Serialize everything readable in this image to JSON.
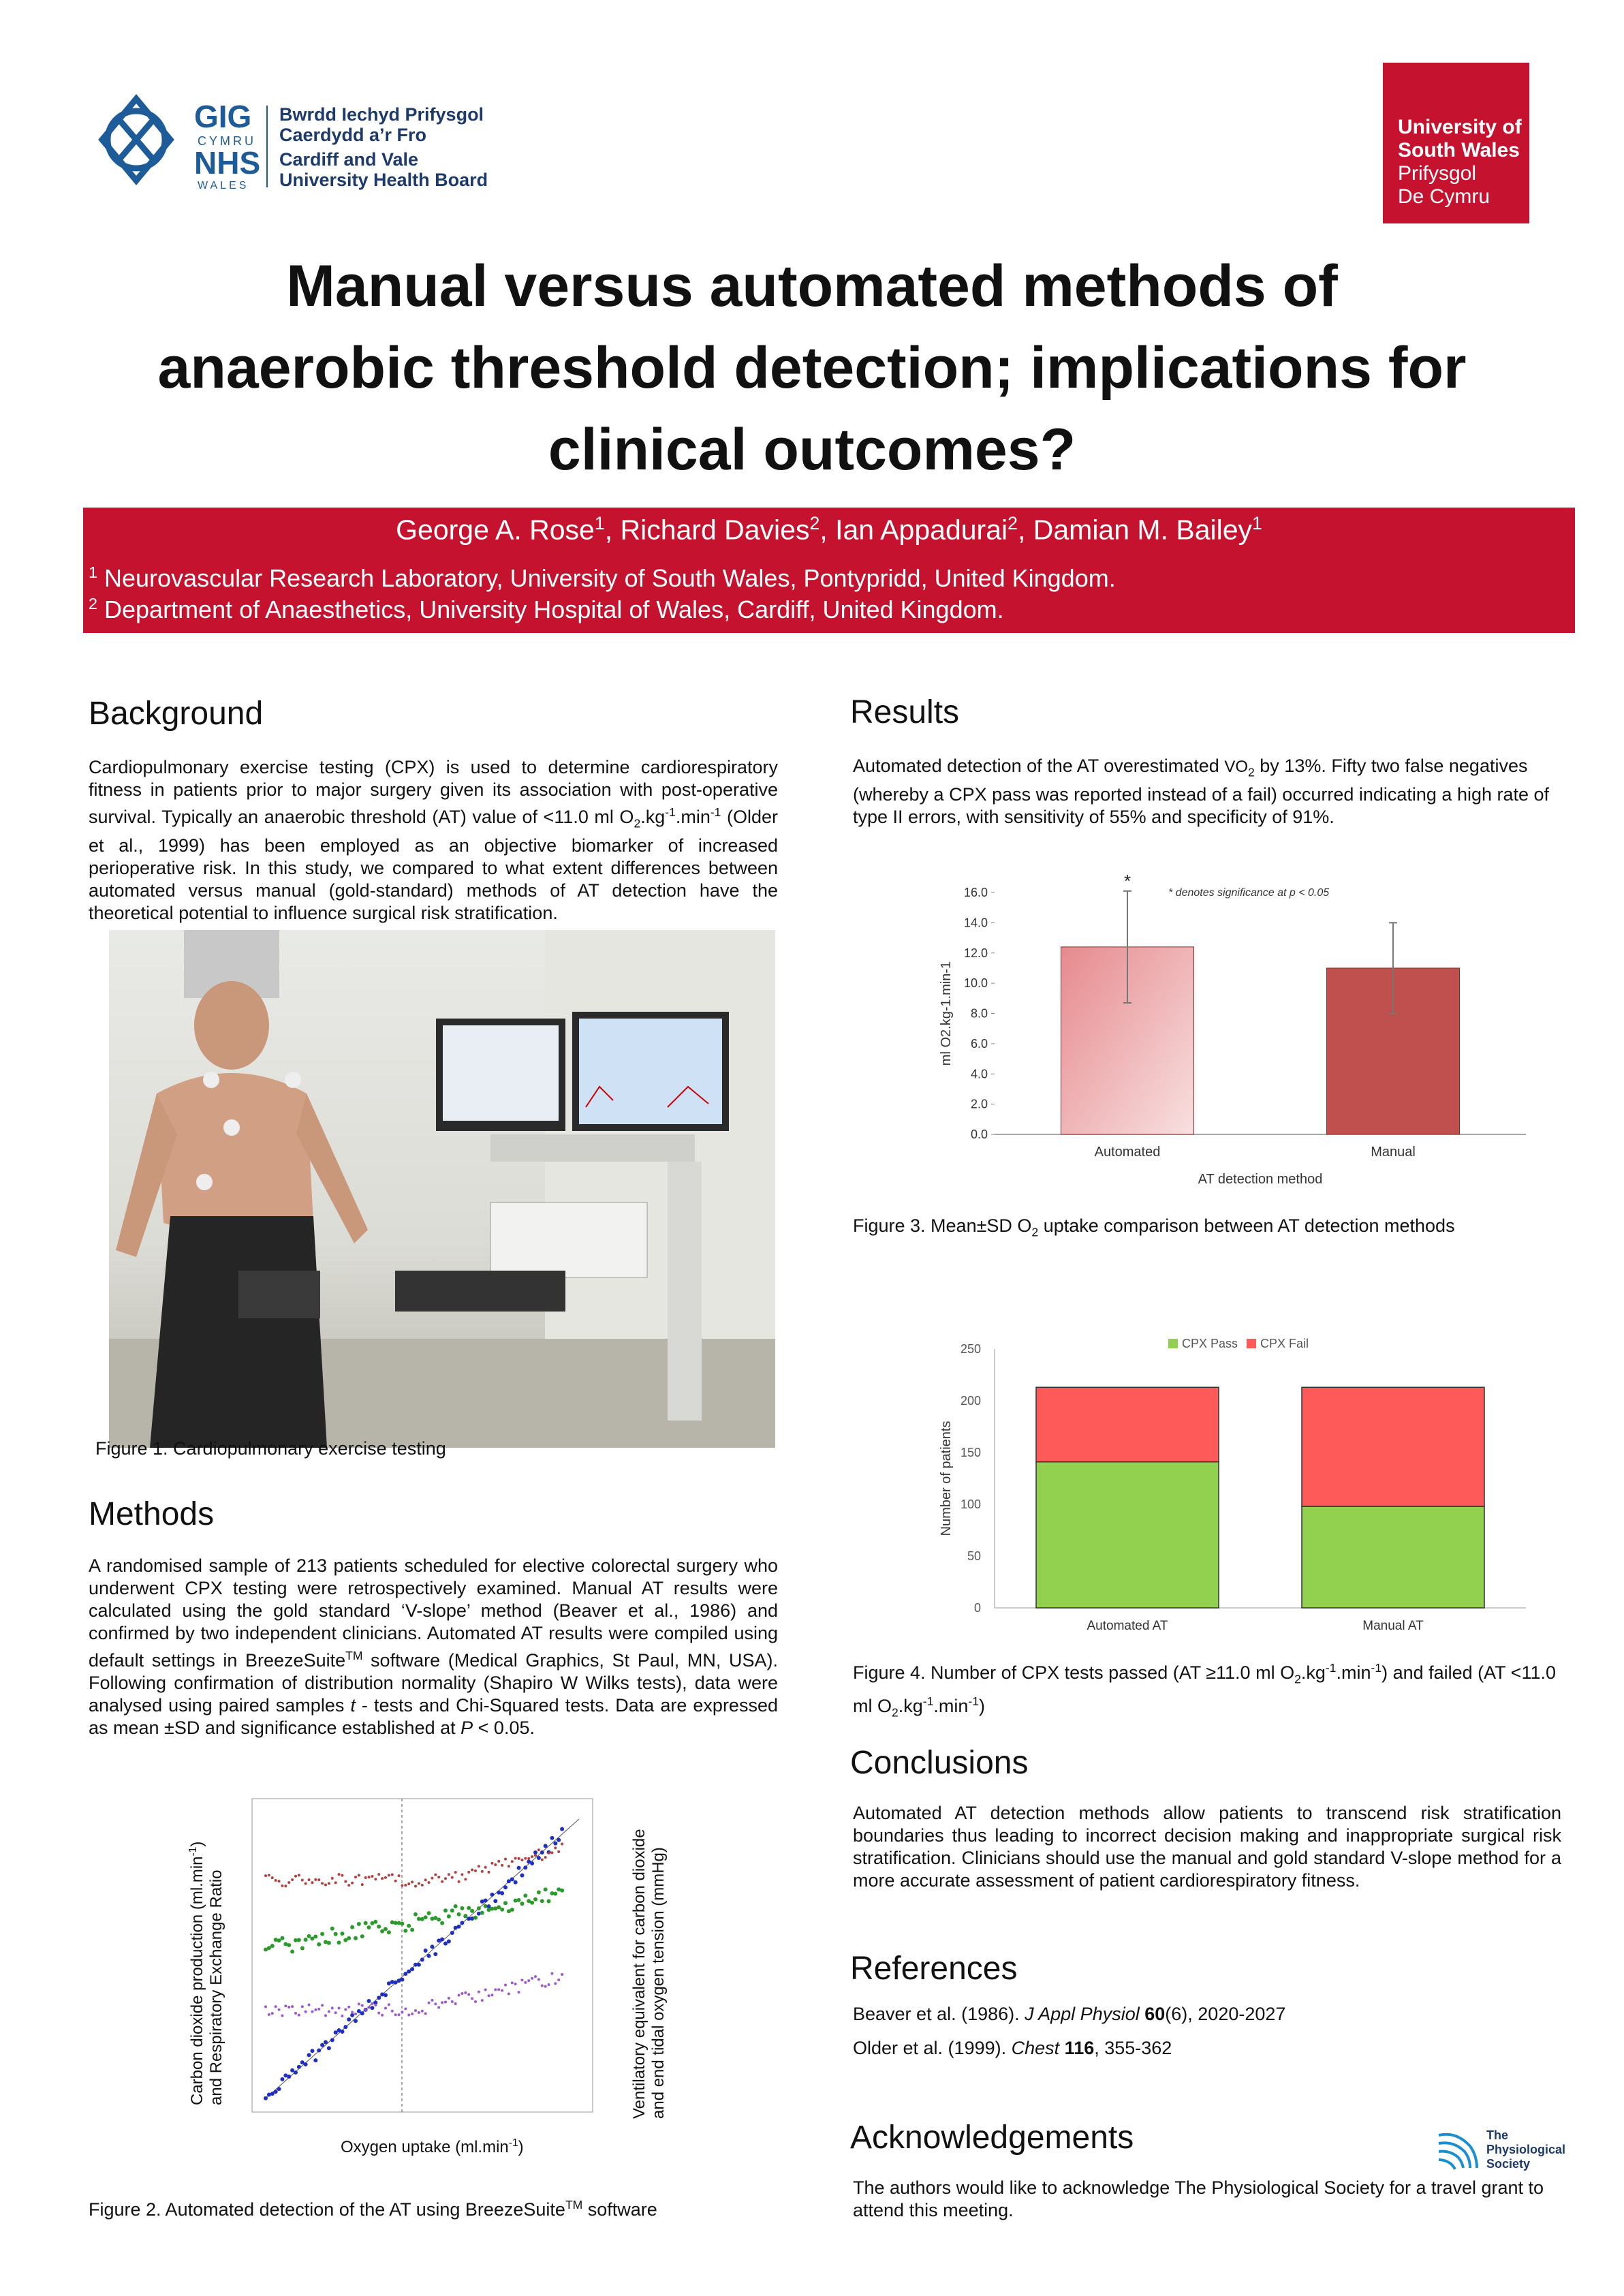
{
  "logos": {
    "nhs": {
      "gig": "GIG",
      "cymru": "CYMRU",
      "nhs": "NHS",
      "wales": "WALES",
      "lines": [
        "Bwrdd Iechyd Prifysgol",
        "Caerdydd a’r Fro",
        "Cardiff and Vale",
        "University Health Board"
      ]
    },
    "usw": [
      "University of",
      "South Wales",
      "Prifysgol",
      "De Cymru"
    ],
    "physoc": [
      "The",
      "Physiological",
      "Society"
    ]
  },
  "title": [
    "Manual versus automated methods of",
    "anaerobic threshold detection; implications for",
    "clinical outcomes?"
  ],
  "authors": {
    "a1": "George A. Rose",
    "s1": "1",
    "a2": ", Richard Davies",
    "s2": "2",
    "a3": ", Ian Appadurai",
    "s3": "2",
    "a4": ", Damian M. Bailey",
    "s4": "1"
  },
  "affiliations": [
    {
      "sup": "1",
      "text": " Neurovascular Research Laboratory, University of South Wales, Pontypridd, United Kingdom."
    },
    {
      "sup": "2",
      "text": " Department of Anaesthetics, University Hospital of Wales, Cardiff, United Kingdom."
    }
  ],
  "background": {
    "heading": "Background",
    "t1": "Cardiopulmonary exercise testing (CPX) is used to determine cardiorespiratory fitness in patients prior to major surgery given its association with post-operative survival. Typically an anaerobic threshold (AT) value of <11.0 ml O",
    "sub": "2",
    "t2": ".kg",
    "sup1": "-1",
    "t3": ".min",
    "sup2": "-1",
    "t4": " (Older et al., 1999) has been employed as an objective biomarker of increased perioperative risk. In this study, we compared to what extent differences between automated versus manual (gold-standard) methods of AT detection have the theoretical potential to influence surgical risk stratification."
  },
  "figure1_caption": "Figure 1.  Cardiopulmonary exercise testing",
  "methods": {
    "heading": "Methods",
    "t1": "A randomised sample of 213 patients scheduled for elective colorectal surgery who underwent CPX testing were retrospectively examined. Manual AT results were calculated using the gold standard ‘V-slope’ method (Beaver et al., 1986) and confirmed by two independent clinicians. Automated AT results were compiled using default settings in BreezeSuite",
    "tm": "TM",
    "t2": " software (Medical Graphics, St Paul, MN, USA). Following confirmation of distribution normality (Shapiro W Wilks tests), data were analysed using paired samples ",
    "t_ital": "t",
    "t3": " - tests and Chi-Squared tests. Data are expressed as mean ±SD and significance established at ",
    "p_ital": "P",
    "t4": " < 0.05."
  },
  "figure2": {
    "ylabel_left_1": "Carbon dioxide production (ml.min",
    "ylabel_left_sup": "-1",
    "ylabel_left_2": ")",
    "ylabel_left_line2": "and Respiratory Exchange Ratio",
    "ylabel_right_1": "Ventilatory equivalent for carbon dioxide",
    "ylabel_right_2": "and end tidal oxygen tension (mmHg)",
    "xlabel_1": "Oxygen uptake (ml.min",
    "xlabel_sup": "-1",
    "xlabel_2": ")",
    "caption_1": "Figure 2. Automated detection of the AT using  BreezeSuite",
    "caption_tm": "TM",
    "caption_2": " software"
  },
  "results": {
    "heading": "Results",
    "t1": "Automated detection of the AT overestimated ",
    "vo": "VO",
    "vo_sub": "2",
    "t2": " by 13%. Fifty two false negatives (whereby a CPX pass was reported instead of a fail) occurred indicating a high rate of type II errors, with sensitivity of 55% and specificity of 91%."
  },
  "figure3_caption": {
    "t1": "Figure 3. Mean±SD O",
    "sub": "2",
    "t2": " uptake comparison between AT detection methods"
  },
  "figure4_caption": {
    "t1": "Figure 4. Number of CPX tests passed (AT ≥11.0 ml O",
    "sub1": "2",
    "t2": ".kg",
    "sup1": "-1",
    "t3": ".min",
    "sup2": "-1",
    "t4": ") and failed (AT <11.0 ml O",
    "sub2": "2",
    "t5": ".kg",
    "sup3": "-1",
    "t6": ".min",
    "sup4": "-1",
    "t7": ")"
  },
  "conclusions": {
    "heading": "Conclusions",
    "text": "Automated AT detection methods allow patients to transcend risk stratification boundaries thus leading to incorrect decision making and inappropriate surgical risk stratification. Clinicians should use the manual and gold standard V-slope method for a more accurate assessment of patient cardiorespiratory fitness."
  },
  "references": {
    "heading": "References",
    "r1": {
      "a": "Beaver et al. (1986). ",
      "j": "J Appl Physiol",
      "v": " 60",
      "rest": "(6), 2020-2027"
    },
    "r2": {
      "a": "Older et al. (1999). ",
      "j": "Chest",
      "v": " 116",
      "rest": ", 355-362"
    }
  },
  "acknowledgements": {
    "heading": "Acknowledgements",
    "text": "The authors would like to acknowledge The Physiological Society for a travel grant to attend this meeting."
  },
  "colors": {
    "brand_red": "#c4122f",
    "bar_auto": "#e68a8e",
    "bar_manual": "#c0504d",
    "pass": "#92d050",
    "fail": "#ff5a5a"
  },
  "chart_data": [
    {
      "type": "bar",
      "categories": [
        "Automated",
        "Manual"
      ],
      "values": [
        12.4,
        11.0
      ],
      "errors": [
        3.7,
        3.0
      ],
      "xlabel": "AT detection method",
      "ylabel": "ml O2.kg-1.min-1",
      "ylim": [
        0,
        16.0
      ],
      "yticks": [
        "0.0",
        "2.0",
        "4.0",
        "6.0",
        "8.0",
        "10.0",
        "12.0",
        "14.0",
        "16.0"
      ],
      "annotation_star": "*",
      "annotation": "* denotes significance at p < 0.05"
    },
    {
      "type": "bar",
      "stacked": true,
      "categories": [
        "Automated AT",
        "Manual AT"
      ],
      "series": [
        {
          "name": "CPX Pass",
          "values": [
            141,
            98
          ]
        },
        {
          "name": "CPX Fail",
          "values": [
            72,
            115
          ]
        }
      ],
      "ylabel": "Number of patients",
      "ylim": [
        0,
        250
      ],
      "yticks": [
        "0",
        "50",
        "100",
        "150",
        "200",
        "250"
      ],
      "legend": "top-right"
    }
  ]
}
